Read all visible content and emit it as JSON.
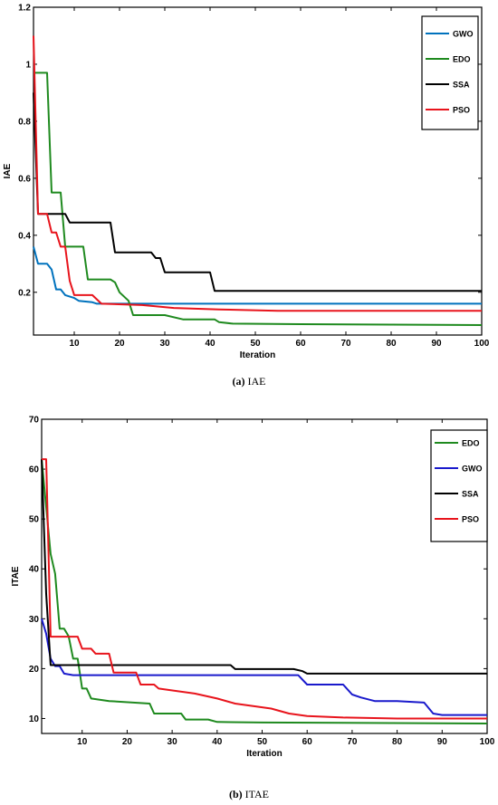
{
  "captions": [
    {
      "letter": "(a)",
      "text": "IAE"
    },
    {
      "letter": "(b)",
      "text": "ITAE"
    }
  ],
  "chart_data": [
    {
      "type": "line",
      "xlabel": "Iteration",
      "ylabel": "IAE",
      "xlim": [
        1,
        100
      ],
      "ylim": [
        0.05,
        1.2
      ],
      "xticks": [
        10,
        20,
        30,
        40,
        50,
        60,
        70,
        80,
        90,
        100
      ],
      "yticks": [
        0.2,
        0.4,
        0.6,
        0.8,
        1,
        1.2
      ],
      "ytick_labels": [
        "0.2",
        "0.4",
        "0.6",
        "0.8",
        "1",
        "1.2"
      ],
      "grid": false,
      "legend_position": "top-right",
      "series": [
        {
          "name": "GWO",
          "color": "#0072BD",
          "points": [
            [
              1,
              0.36
            ],
            [
              2,
              0.3
            ],
            [
              4,
              0.3
            ],
            [
              5,
              0.28
            ],
            [
              6,
              0.21
            ],
            [
              7,
              0.21
            ],
            [
              8,
              0.19
            ],
            [
              10,
              0.18
            ],
            [
              11,
              0.17
            ],
            [
              14,
              0.165
            ],
            [
              15,
              0.16
            ],
            [
              100,
              0.16
            ]
          ]
        },
        {
          "name": "EDO",
          "color": "#1f8a1f",
          "points": [
            [
              1,
              0.97
            ],
            [
              4,
              0.97
            ],
            [
              5,
              0.55
            ],
            [
              7,
              0.55
            ],
            [
              8,
              0.36
            ],
            [
              12,
              0.36
            ],
            [
              13,
              0.245
            ],
            [
              18,
              0.245
            ],
            [
              19,
              0.235
            ],
            [
              20,
              0.2
            ],
            [
              22,
              0.17
            ],
            [
              23,
              0.12
            ],
            [
              30,
              0.12
            ],
            [
              34,
              0.105
            ],
            [
              41,
              0.105
            ],
            [
              42,
              0.095
            ],
            [
              45,
              0.09
            ],
            [
              60,
              0.088
            ],
            [
              100,
              0.085
            ]
          ]
        },
        {
          "name": "SSA",
          "color": "#000000",
          "points": [
            [
              1,
              0.9
            ],
            [
              2,
              0.475
            ],
            [
              8,
              0.475
            ],
            [
              9,
              0.445
            ],
            [
              18,
              0.445
            ],
            [
              19,
              0.34
            ],
            [
              27,
              0.34
            ],
            [
              28,
              0.32
            ],
            [
              29,
              0.32
            ],
            [
              30,
              0.27
            ],
            [
              40,
              0.27
            ],
            [
              41,
              0.205
            ],
            [
              100,
              0.205
            ]
          ]
        },
        {
          "name": "PSO",
          "color": "#e8141c",
          "points": [
            [
              1,
              1.1
            ],
            [
              2,
              0.475
            ],
            [
              4,
              0.475
            ],
            [
              5,
              0.41
            ],
            [
              6,
              0.41
            ],
            [
              7,
              0.36
            ],
            [
              8,
              0.36
            ],
            [
              9,
              0.24
            ],
            [
              10,
              0.19
            ],
            [
              14,
              0.19
            ],
            [
              16,
              0.16
            ],
            [
              25,
              0.155
            ],
            [
              32,
              0.145
            ],
            [
              42,
              0.14
            ],
            [
              55,
              0.135
            ],
            [
              100,
              0.135
            ]
          ]
        }
      ]
    },
    {
      "type": "line",
      "xlabel": "Iteration",
      "ylabel": "ITAE",
      "xlim": [
        1,
        100
      ],
      "ylim": [
        7,
        70
      ],
      "xticks": [
        10,
        20,
        30,
        40,
        50,
        60,
        70,
        80,
        90,
        100
      ],
      "yticks": [
        10,
        20,
        30,
        40,
        50,
        60,
        70
      ],
      "ytick_labels": [
        "10",
        "20",
        "30",
        "40",
        "50",
        "60",
        "70"
      ],
      "grid": false,
      "legend_position": "top-right",
      "series": [
        {
          "name": "EDO",
          "color": "#1f8a1f",
          "points": [
            [
              1,
              62
            ],
            [
              3,
              43
            ],
            [
              4,
              39
            ],
            [
              5,
              28
            ],
            [
              6,
              28
            ],
            [
              7,
              26.5
            ],
            [
              8,
              22
            ],
            [
              9,
              22
            ],
            [
              10,
              16
            ],
            [
              11,
              16
            ],
            [
              12,
              14
            ],
            [
              16,
              13.5
            ],
            [
              25,
              13
            ],
            [
              26,
              11
            ],
            [
              32,
              11
            ],
            [
              33,
              9.8
            ],
            [
              38,
              9.8
            ],
            [
              40,
              9.3
            ],
            [
              50,
              9.2
            ],
            [
              100,
              9.0
            ]
          ]
        },
        {
          "name": "GWO",
          "color": "#1a1acc",
          "points": [
            [
              1,
              30
            ],
            [
              2,
              27
            ],
            [
              3,
              22
            ],
            [
              4,
              20.5
            ],
            [
              5,
              20.5
            ],
            [
              6,
              19
            ],
            [
              8,
              18.7
            ],
            [
              10,
              18.7
            ],
            [
              58,
              18.7
            ],
            [
              60,
              16.8
            ],
            [
              68,
              16.8
            ],
            [
              70,
              14.8
            ],
            [
              72,
              14.2
            ],
            [
              75,
              13.5
            ],
            [
              80,
              13.5
            ],
            [
              86,
              13.2
            ],
            [
              88,
              11
            ],
            [
              90,
              10.7
            ],
            [
              100,
              10.7
            ]
          ]
        },
        {
          "name": "SSA",
          "color": "#000000",
          "points": [
            [
              1,
              62
            ],
            [
              2,
              35
            ],
            [
              3,
              20.7
            ],
            [
              43,
              20.7
            ],
            [
              44,
              19.9
            ],
            [
              57,
              19.9
            ],
            [
              59,
              19.5
            ],
            [
              60,
              19
            ],
            [
              100,
              19
            ]
          ]
        },
        {
          "name": "PSO",
          "color": "#e8141c",
          "points": [
            [
              1,
              62
            ],
            [
              2,
              62
            ],
            [
              3,
              26.4
            ],
            [
              9,
              26.4
            ],
            [
              10,
              24
            ],
            [
              12,
              24
            ],
            [
              13,
              23
            ],
            [
              16,
              23
            ],
            [
              17,
              19.2
            ],
            [
              22,
              19.2
            ],
            [
              23,
              16.8
            ],
            [
              26,
              16.8
            ],
            [
              27,
              16
            ],
            [
              35,
              15
            ],
            [
              40,
              14
            ],
            [
              44,
              13
            ],
            [
              52,
              12
            ],
            [
              56,
              11
            ],
            [
              60,
              10.5
            ],
            [
              68,
              10.2
            ],
            [
              80,
              10
            ],
            [
              100,
              10
            ]
          ]
        }
      ]
    }
  ]
}
